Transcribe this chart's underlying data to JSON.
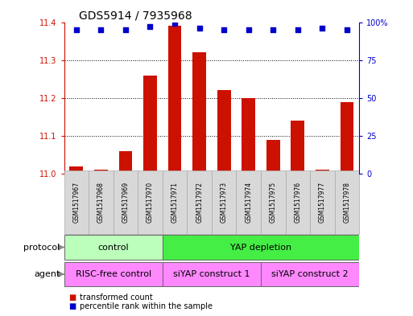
{
  "title": "GDS5914 / 7935968",
  "samples": [
    "GSM1517967",
    "GSM1517968",
    "GSM1517969",
    "GSM1517970",
    "GSM1517971",
    "GSM1517972",
    "GSM1517973",
    "GSM1517974",
    "GSM1517975",
    "GSM1517976",
    "GSM1517977",
    "GSM1517978"
  ],
  "transformed_counts": [
    11.02,
    11.01,
    11.06,
    11.26,
    11.39,
    11.32,
    11.22,
    11.2,
    11.09,
    11.14,
    11.01,
    11.19
  ],
  "percentile_ranks": [
    95,
    95,
    95,
    97,
    99,
    96,
    95,
    95,
    95,
    95,
    96,
    95
  ],
  "ylim_left": [
    11.0,
    11.4
  ],
  "ylim_right": [
    0,
    100
  ],
  "yticks_left": [
    11.0,
    11.1,
    11.2,
    11.3,
    11.4
  ],
  "yticks_right": [
    0,
    25,
    50,
    75,
    100
  ],
  "bar_color": "#cc1100",
  "dot_color": "#0000cc",
  "background_color": "#ffffff",
  "protocol_control_label": "control",
  "protocol_yap_label": "YAP depletion",
  "agent_risc_label": "RISC-free control",
  "agent_siyap1_label": "siYAP construct 1",
  "agent_siyap2_label": "siYAP construct 2",
  "protocol_control_color": "#bbffbb",
  "protocol_yap_color": "#44ee44",
  "agent_risc_color": "#ff88ff",
  "agent_siyap1_color": "#ff88ff",
  "agent_siyap2_color": "#ff88ff",
  "sample_bg_color": "#d8d8d8",
  "legend_bar_label": "transformed count",
  "legend_dot_label": "percentile rank within the sample",
  "protocol_label": "protocol",
  "agent_label": "agent"
}
